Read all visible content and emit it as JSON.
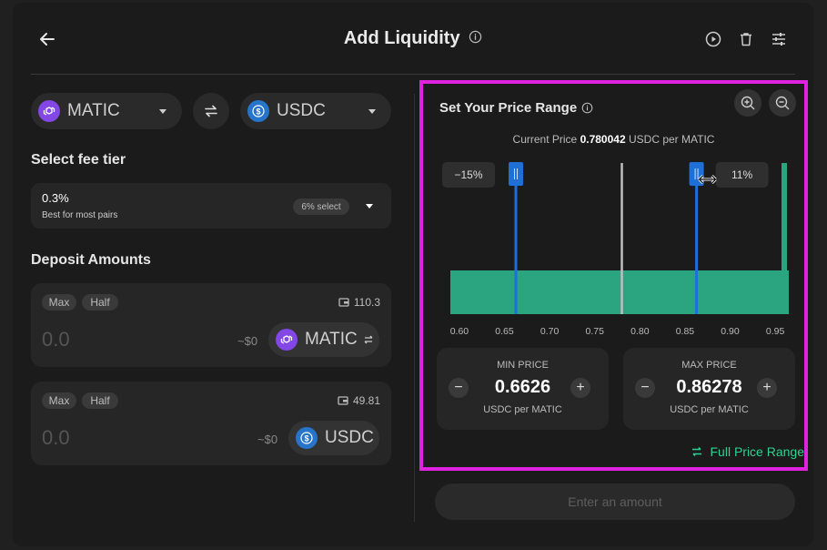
{
  "header": {
    "title": "Add Liquidity"
  },
  "pair": {
    "token_a": "MATIC",
    "token_b": "USDC"
  },
  "fee": {
    "section_title": "Select fee tier",
    "value": "0.3%",
    "description": "Best for most pairs",
    "select_badge": "6% select"
  },
  "deposit": {
    "section_title": "Deposit Amounts",
    "max_label": "Max",
    "half_label": "Half",
    "rows": [
      {
        "amount": "0.0",
        "usd": "~$0",
        "token": "MATIC",
        "balance": "110.3"
      },
      {
        "amount": "0.0",
        "usd": "~$0",
        "token": "USDC",
        "balance": "49.81"
      }
    ]
  },
  "range": {
    "title": "Set Your Price Range",
    "current_price_label": "Current Price",
    "current_price_value": "0.780042",
    "current_price_unit": "USDC per MATIC",
    "min_pct": "−15%",
    "max_pct": "11%",
    "axis_ticks": [
      "0.60",
      "0.65",
      "0.70",
      "0.75",
      "0.80",
      "0.85",
      "0.90",
      "0.95"
    ],
    "min_price": {
      "label": "MIN PRICE",
      "value": "0.6626",
      "unit": "USDC per MATIC"
    },
    "max_price": {
      "label": "MAX PRICE",
      "value": "0.86278",
      "unit": "USDC per MATIC"
    },
    "full_range_label": "Full Price Range"
  },
  "chart_data": {
    "type": "area",
    "x_range": [
      0.59,
      0.965
    ],
    "current_price": 0.780042,
    "min_price": 0.6626,
    "max_price": 0.86278,
    "liquidity_from": 0.59,
    "colors": {
      "liquidity": "#2ba57f",
      "handle": "#1f6fd8",
      "current": "#bfbfbf"
    }
  },
  "footer": {
    "submit_label": "Enter an amount"
  },
  "colors": {
    "accent_green": "#2fd192",
    "highlight": "#e021e0",
    "matic": "#8247e5",
    "usdc": "#2775ca"
  }
}
